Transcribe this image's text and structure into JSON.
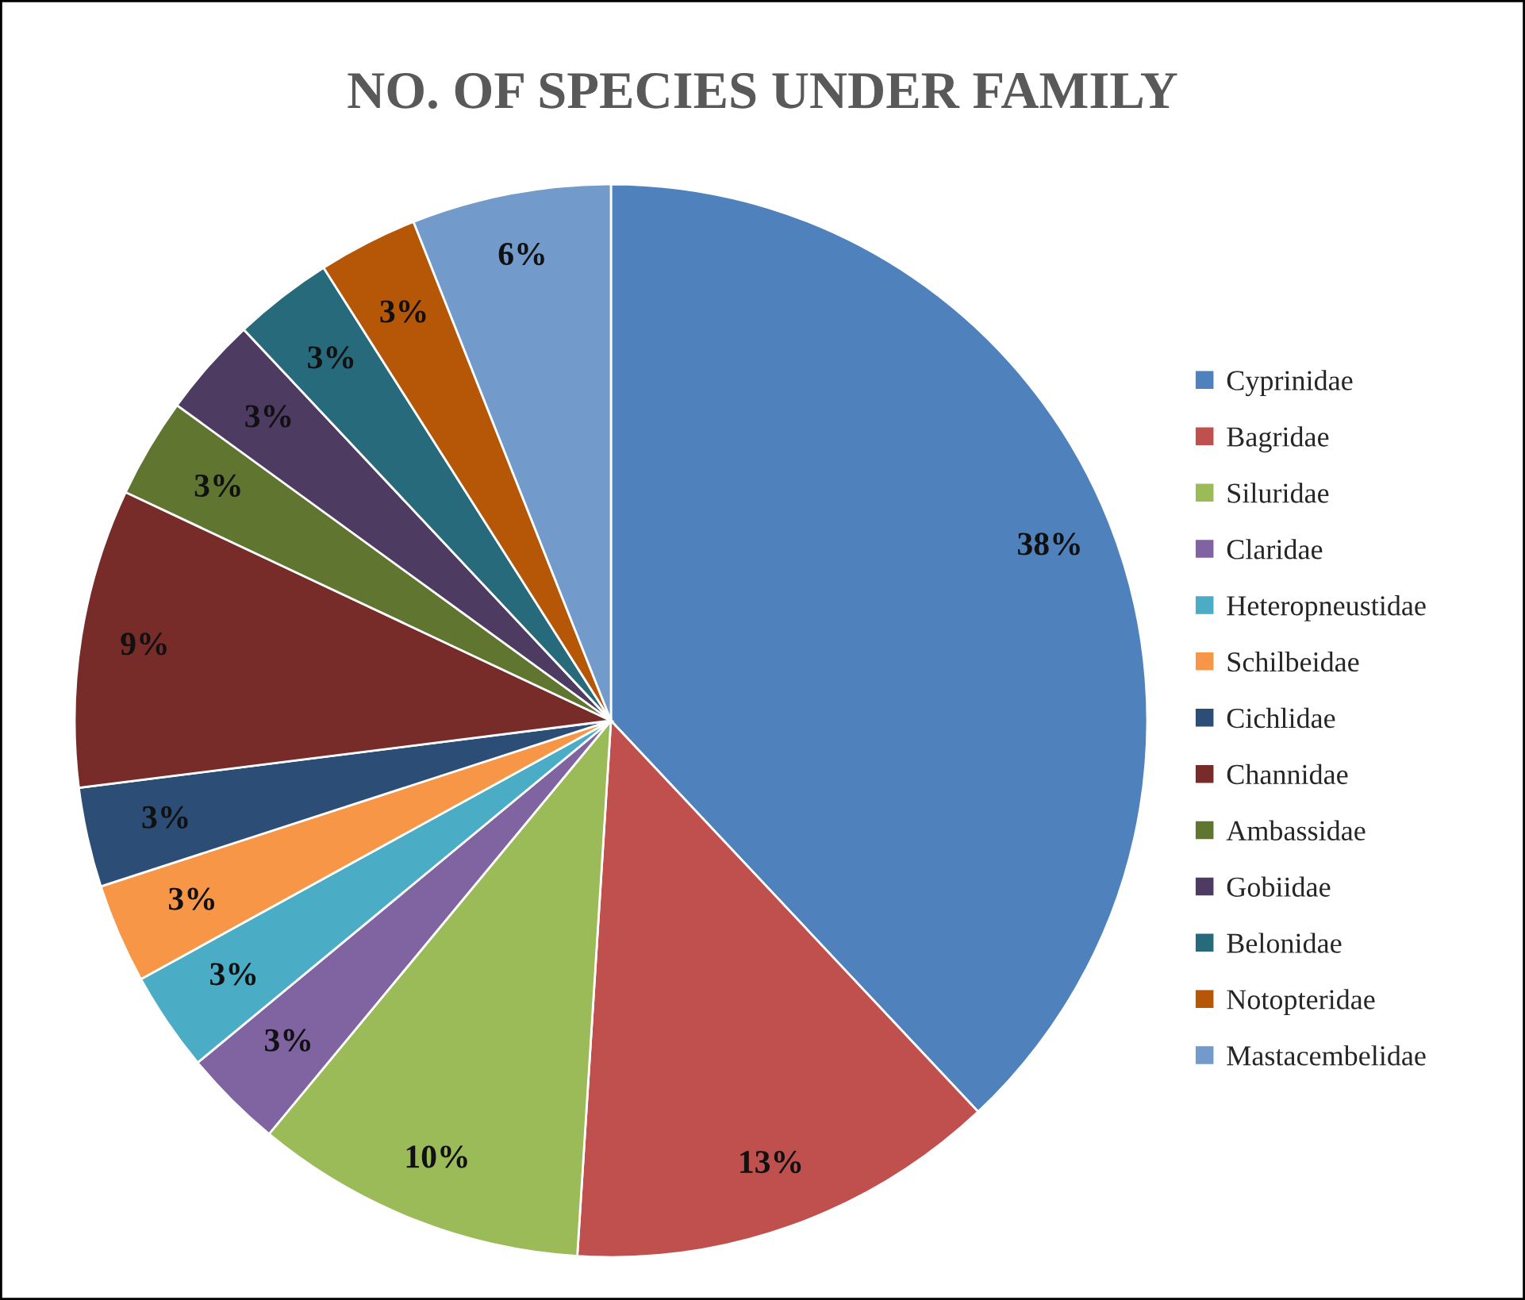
{
  "chart_data": {
    "type": "pie",
    "title": "NO. OF SPECIES UNDER FAMILY",
    "categories": [
      "Cyprinidae",
      "Bagridae",
      "Siluridae",
      "Claridae",
      "Heteropneustidae",
      "Schilbeidae",
      "Cichlidae",
      "Channidae",
      "Ambassidae",
      "Gobiidae",
      "Belonidae",
      "Notopteridae",
      "Mastacembelidae"
    ],
    "values": [
      38,
      13,
      10,
      3,
      3,
      3,
      3,
      9,
      3,
      3,
      3,
      3,
      6
    ],
    "colors": [
      "#4f81bd",
      "#c0504d",
      "#9bbb59",
      "#8064a2",
      "#4bacc6",
      "#f79646",
      "#2c4d75",
      "#772c2a",
      "#5f7530",
      "#4d3b62",
      "#276a7c",
      "#b65708",
      "#729aca"
    ],
    "value_labels": [
      "38%",
      "13%",
      "10%",
      "3%",
      "3%",
      "3%",
      "3%",
      "9%",
      "3%",
      "3%",
      "3%",
      "3%",
      "6%"
    ],
    "legend": "right"
  }
}
